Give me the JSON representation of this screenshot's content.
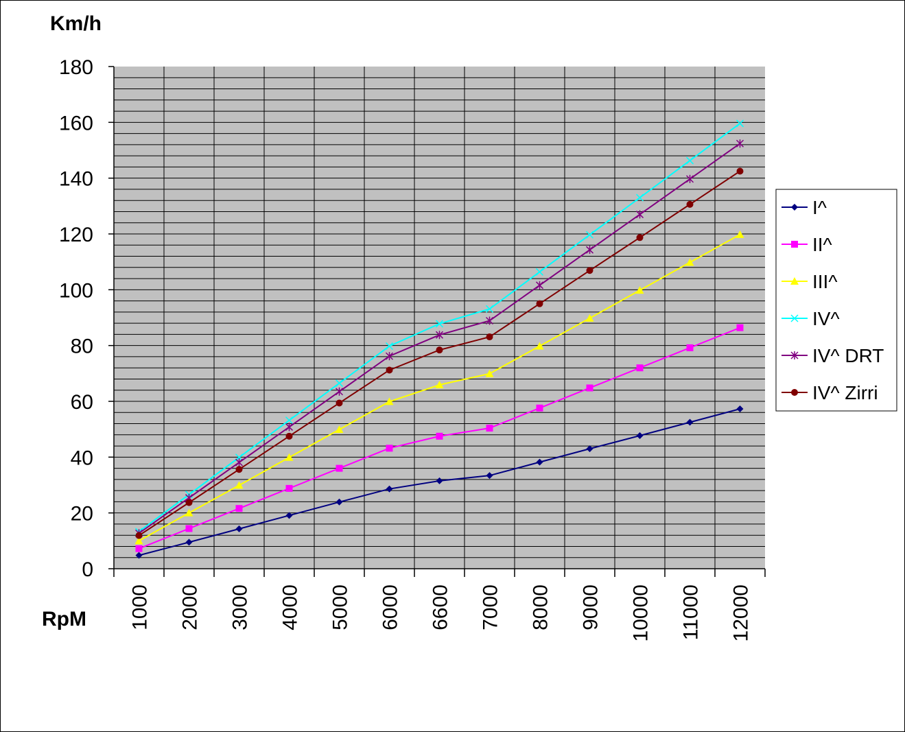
{
  "chart_data": {
    "type": "line",
    "ylabel": "Km/h",
    "xlabel": "RpM",
    "categories": [
      "1000",
      "2000",
      "3000",
      "4000",
      "5000",
      "6000",
      "6600",
      "7000",
      "8000",
      "9000",
      "10000",
      "11000",
      "12000"
    ],
    "ylim": [
      0,
      180
    ],
    "yticks": [
      0,
      20,
      40,
      60,
      80,
      100,
      120,
      140,
      160,
      180
    ],
    "grid": true,
    "legend_position": "right",
    "series": [
      {
        "name": "I^",
        "color": "#000080",
        "marker": "diamond",
        "values": [
          4.8,
          9.5,
          14.3,
          19.1,
          23.9,
          28.6,
          31.5,
          33.4,
          38.2,
          43.0,
          47.7,
          52.5,
          57.3
        ]
      },
      {
        "name": "II^",
        "color": "#FF00FF",
        "marker": "square",
        "values": [
          7.2,
          14.4,
          21.6,
          28.8,
          36.0,
          43.2,
          47.5,
          50.4,
          57.6,
          64.8,
          72.0,
          79.2,
          86.4
        ]
      },
      {
        "name": "III^",
        "color": "#FFFF00",
        "marker": "triangle",
        "values": [
          10.0,
          20.0,
          29.9,
          39.9,
          49.9,
          59.9,
          65.9,
          69.9,
          79.8,
          89.8,
          99.8,
          109.8,
          119.8
        ]
      },
      {
        "name": "IV^",
        "color": "#00FFFF",
        "marker": "x",
        "values": [
          13.3,
          26.6,
          39.9,
          53.2,
          66.5,
          79.8,
          87.8,
          93.1,
          106.4,
          119.7,
          133.0,
          146.3,
          159.6
        ]
      },
      {
        "name": "IV^ DRT",
        "color": "#800080",
        "marker": "star",
        "values": [
          12.7,
          25.4,
          38.1,
          50.8,
          63.5,
          76.2,
          83.8,
          88.9,
          101.6,
          114.3,
          127.0,
          139.7,
          152.4
        ]
      },
      {
        "name": "IV^ Zirri",
        "color": "#800000",
        "marker": "circle",
        "values": [
          11.9,
          23.7,
          35.6,
          47.5,
          59.4,
          71.2,
          78.4,
          83.1,
          95.0,
          106.9,
          118.7,
          130.6,
          142.5
        ]
      }
    ]
  }
}
